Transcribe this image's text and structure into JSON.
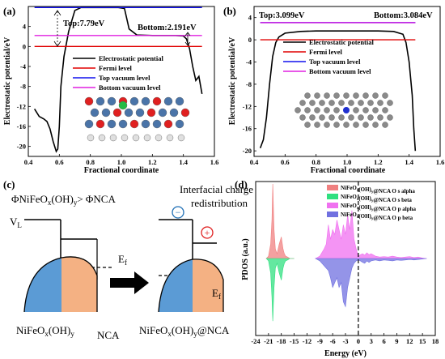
{
  "panels": {
    "a": {
      "label": "(a)"
    },
    "b": {
      "label": "(b)"
    },
    "c": {
      "label": "(c)"
    },
    "d": {
      "label": "(d)"
    }
  },
  "chart_data": [
    {
      "panel": "a",
      "type": "line",
      "xlabel": "Fractional coordinate",
      "ylabel": "Electrostatic potential/eV",
      "xlim": [
        0.4,
        1.6
      ],
      "ylim": [
        -22,
        8
      ],
      "xticks": [
        "0.4",
        "0.6",
        "0.8",
        "1.0",
        "1.2",
        "1.4",
        "1.6"
      ],
      "yticks": [
        "-20",
        "-16",
        "-12",
        "-8",
        "-4",
        "0",
        "4"
      ],
      "annotations": [
        "Top:7.79eV",
        "Bottom:2.191eV"
      ],
      "legend": [
        "Electrostatic potential",
        "Fermi level",
        "Top vacuum level",
        "Bottom vacuum level"
      ],
      "levels": {
        "top_vacuum": 7.79,
        "bottom_vacuum": 2.191,
        "fermi": 0.0
      },
      "series": [
        {
          "name": "Electrostatic potential",
          "color": "#000000",
          "x": [
            0.44,
            0.47,
            0.5,
            0.52,
            0.54,
            0.56,
            0.58,
            0.59,
            0.6,
            0.61,
            0.63,
            0.66,
            0.7,
            0.74,
            0.8,
            0.9,
            0.98,
            1.02,
            1.05,
            1.1,
            1.2,
            1.3,
            1.35,
            1.4,
            1.42,
            1.44,
            1.46,
            1.48,
            1.5,
            1.52
          ],
          "y": [
            -12.5,
            -14.0,
            -14.5,
            -15.0,
            -16.5,
            -19,
            -21,
            -20.5,
            -16,
            -8,
            -2,
            3,
            7.2,
            7.79,
            7.79,
            7.79,
            7.79,
            7.6,
            3.5,
            2.3,
            2.19,
            2.19,
            2.19,
            2.1,
            1.5,
            -0.5,
            -4,
            -6.8,
            -6.0,
            -9.5
          ]
        },
        {
          "name": "Fermi level",
          "color": "#e00000",
          "x": [
            0.44,
            1.52
          ],
          "y": [
            0,
            0
          ]
        },
        {
          "name": "Top vacuum level",
          "color": "#1010ee",
          "x": [
            0.44,
            1.52
          ],
          "y": [
            7.79,
            7.79
          ]
        },
        {
          "name": "Bottom vacuum level",
          "color": "#e020e0",
          "x": [
            0.44,
            1.52
          ],
          "y": [
            2.191,
            2.191
          ]
        }
      ]
    },
    {
      "panel": "b",
      "type": "line",
      "xlabel": "Fractional coordinate",
      "ylabel": "Electrostatic potential/eV",
      "xlim": [
        0.4,
        1.6
      ],
      "ylim": [
        -21,
        6
      ],
      "xticks": [
        "0.4",
        "0.6",
        "0.8",
        "1.0",
        "1.2",
        "1.4",
        "1.6"
      ],
      "yticks": [
        "-20",
        "-16",
        "-12",
        "-8",
        "-4",
        "0",
        "4"
      ],
      "annotations": [
        "Top:3.099eV",
        "Bottom:3.084eV"
      ],
      "legend": [
        "Electrostatic potential",
        "Fermi level",
        "Top vacuum level",
        "Bottom vacuum level"
      ],
      "levels": {
        "top_vacuum": 3.099,
        "bottom_vacuum": 3.084,
        "fermi": 0.0
      },
      "series": [
        {
          "name": "Electrostatic potential",
          "color": "#000000",
          "x": [
            0.44,
            0.46,
            0.48,
            0.5,
            0.52,
            0.54,
            0.56,
            0.6,
            0.7,
            0.8,
            0.9,
            1.0,
            1.1,
            1.2,
            1.3,
            1.36,
            1.38,
            1.4,
            1.42,
            1.43,
            1.44
          ],
          "y": [
            -19.5,
            -18,
            -14,
            -8,
            -3,
            -0.5,
            0.5,
            1.2,
            1.5,
            1.6,
            1.6,
            1.6,
            1.6,
            1.6,
            1.5,
            1.0,
            -0.5,
            -4,
            -10,
            -16,
            -20
          ]
        },
        {
          "name": "Fermi level",
          "color": "#e00000",
          "x": [
            0.44,
            1.44
          ],
          "y": [
            0,
            0
          ]
        },
        {
          "name": "Top vacuum level",
          "color": "#1010ee",
          "x": [
            0.44,
            1.44
          ],
          "y": [
            3.099,
            3.099
          ]
        },
        {
          "name": "Bottom vacuum level",
          "color": "#e020e0",
          "x": [
            0.44,
            1.44
          ],
          "y": [
            3.084,
            3.084
          ]
        }
      ]
    },
    {
      "panel": "d",
      "type": "area",
      "xlabel": "Energy (eV)",
      "ylabel": "PDOS (a.u.)",
      "xlim": [
        -24,
        18
      ],
      "ylim": [
        -16,
        16
      ],
      "xticks": [
        "-24",
        "-21",
        "-18",
        "-15",
        "-12",
        "-9",
        "-6",
        "-3",
        "0",
        "3",
        "6",
        "9",
        "12",
        "15",
        "18"
      ],
      "legend": [
        "NiFeO<sub>x</sub>(OH)<sub>y</sub>@NCA O s alpha",
        "NiFeO<sub>x</sub>(OH)<sub>y</sub>@NCA O s beta",
        "NiFeO<sub>x</sub>(OH)<sub>y</sub>@NCA O p alpha",
        "NiFeO<sub>x</sub>(OH)<sub>y</sub>@NCA O p beta"
      ],
      "series": [
        {
          "name": "NiFeO<sub>x</sub>(OH)<sub>y</sub>@NCA O s alpha",
          "color": "#f08080",
          "x": [
            -21.5,
            -21,
            -20.5,
            -20.2,
            -20,
            -19.7,
            -19.4,
            -19,
            -18.5,
            -18,
            -17.6,
            -17.3,
            -17,
            -16.5,
            -16,
            -15
          ],
          "y": [
            0,
            0.5,
            3,
            8,
            15.5,
            6,
            2,
            1,
            3,
            4.5,
            2,
            1,
            0.5,
            0.3,
            0,
            0
          ]
        },
        {
          "name": "NiFeO<sub>x</sub>(OH)<sub>y</sub>@NCA O s beta",
          "color": "#30e080",
          "x": [
            -21.5,
            -21,
            -20.5,
            -20.2,
            -20,
            -19.7,
            -19.4,
            -19,
            -18.5,
            -18,
            -17.6,
            -17.3,
            -17,
            -16.5,
            -16,
            -15
          ],
          "y": [
            0,
            -0.5,
            -3,
            -8,
            -13,
            -6,
            -2,
            -1,
            -3,
            -4.5,
            -2,
            -1,
            -0.5,
            -0.3,
            0,
            0
          ]
        },
        {
          "name": "NiFeO<sub>x</sub>(OH)<sub>y</sub>@NCA O p alpha",
          "color": "#f070f0",
          "x": [
            -10,
            -9,
            -8,
            -7.5,
            -7,
            -6.5,
            -6,
            -5.5,
            -5,
            -4.5,
            -4,
            -3.5,
            -3,
            -2.5,
            -2,
            -1.5,
            -1,
            -0.5,
            0,
            0.5,
            1,
            1.5,
            2,
            2.5,
            3,
            4,
            5,
            6,
            7,
            8,
            9,
            10,
            11,
            12,
            13,
            14,
            15,
            16
          ],
          "y": [
            0,
            0.5,
            2,
            3,
            7,
            4,
            6,
            5,
            8,
            6,
            4,
            7,
            5,
            9,
            6,
            10,
            4,
            2,
            0.5,
            0.8,
            1,
            0.7,
            1.2,
            0.8,
            1,
            0.5,
            0.3,
            0.4,
            0.3,
            0.5,
            0.3,
            0.2,
            0.3,
            0.4,
            0.2,
            0.3,
            0.1,
            0
          ]
        },
        {
          "name": "NiFeO<sub>x</sub>(OH)<sub>y</sub>@NCA O p beta",
          "color": "#7070e0",
          "x": [
            -10,
            -9,
            -8,
            -7.5,
            -7,
            -6.5,
            -6,
            -5.5,
            -5,
            -4.5,
            -4,
            -3.5,
            -3,
            -2.5,
            -2,
            -1.5,
            -1,
            -0.5,
            0,
            0.5,
            1,
            1.5,
            2,
            2.5,
            3,
            4,
            5,
            6,
            7,
            8,
            9,
            10,
            11,
            12,
            13,
            14,
            15,
            16
          ],
          "y": [
            0,
            -0.5,
            -1.5,
            -2,
            -2.5,
            -4,
            -6,
            -5,
            -4,
            -6,
            -5,
            -9,
            -10,
            -6,
            -4,
            -2,
            -1,
            -0.5,
            -0.3,
            -0.5,
            -0.8,
            -1,
            -0.5,
            -0.8,
            -0.5,
            -0.3,
            -0.5,
            -0.3,
            -0.4,
            -0.5,
            -0.3,
            -0.4,
            -0.3,
            -0.2,
            -0.3,
            -0.2,
            -0.1,
            0
          ]
        }
      ]
    }
  ],
  "diagram_c": {
    "inequality": "ΦNiFeOx(OH)y> ΦNCA",
    "title_line1": "Interfacial charge",
    "title_line2": "redistribution",
    "vacuum_label": "V",
    "vacuum_sub": "L",
    "ef_left": "E",
    "ef_left_sub": "f",
    "ef_right": "E",
    "ef_right_sub": "f",
    "minus_sign": "−",
    "plus_sign": "+",
    "label_left_a": "NiFeO",
    "label_left_b": "x",
    "label_left_c": "(OH)",
    "label_left_d": "y",
    "label_nca": "NCA",
    "label_right_a": "NiFeO",
    "label_right_b": "x",
    "label_right_c": "(OH)",
    "label_right_d": "y",
    "label_right_e": "@NCA"
  },
  "colors": {
    "blue_region": "#5b9bd5",
    "orange_region": "#f4b183",
    "minus_circle": "#1f6fb5",
    "plus_circle": "#e02020"
  }
}
